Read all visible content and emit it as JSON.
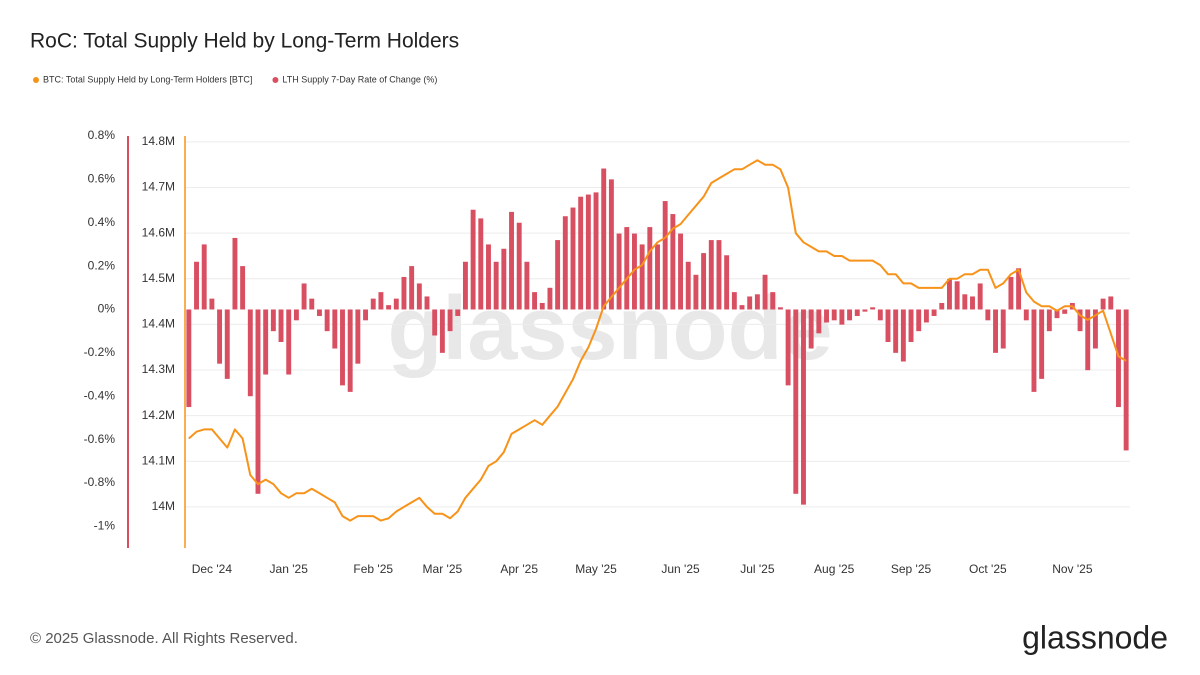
{
  "chart_data": {
    "type": "combo",
    "title": "RoC: Total Supply Held by Long-Term Holders",
    "watermark": "glassnode",
    "footer": "© 2025 Glassnode. All Rights Reserved.",
    "logo": "glassnode",
    "categories": [
      null,
      null,
      null,
      "Dec '24",
      null,
      null,
      null,
      null,
      null,
      null,
      null,
      null,
      null,
      "Jan '25",
      null,
      null,
      null,
      null,
      null,
      null,
      null,
      null,
      null,
      null,
      "Feb '25",
      null,
      null,
      null,
      null,
      null,
      null,
      null,
      null,
      "Mar '25",
      null,
      null,
      null,
      null,
      null,
      null,
      null,
      null,
      null,
      "Apr '25",
      null,
      null,
      null,
      null,
      null,
      null,
      null,
      null,
      null,
      "May '25",
      null,
      null,
      null,
      null,
      null,
      null,
      null,
      null,
      null,
      null,
      "Jun '25",
      null,
      null,
      null,
      null,
      null,
      null,
      null,
      null,
      null,
      "Jul '25",
      null,
      null,
      null,
      null,
      null,
      null,
      null,
      null,
      null,
      "Aug '25",
      null,
      null,
      null,
      null,
      null,
      null,
      null,
      null,
      null,
      "Sep '25",
      null,
      null,
      null,
      null,
      null,
      null,
      null,
      null,
      null,
      "Oct '25",
      null,
      null,
      null,
      null,
      null,
      null,
      null,
      null,
      null,
      null,
      "Nov '25",
      null,
      null,
      null,
      null,
      null,
      null,
      null
    ],
    "ylim": [
      -1.1,
      0.8
    ],
    "yticks": [
      {
        "value": 0.8,
        "label": "0.8%"
      },
      {
        "value": 0.6,
        "label": "0.6%"
      },
      {
        "value": 0.4,
        "label": "0.4%"
      },
      {
        "value": 0.2,
        "label": "0.2%"
      },
      {
        "value": 0,
        "label": "0%"
      },
      {
        "value": -0.2,
        "label": "-0.2%"
      },
      {
        "value": -0.4,
        "label": "-0.4%"
      },
      {
        "value": -0.6,
        "label": "-0.6%"
      },
      {
        "value": -0.8,
        "label": "-0.8%"
      },
      {
        "value": -1,
        "label": "-1%"
      }
    ],
    "y2lim": [
      13910000,
      14813000
    ],
    "y2ticks": [
      {
        "value": 14800000,
        "label": "14.8M"
      },
      {
        "value": 14700000,
        "label": "14.7M"
      },
      {
        "value": 14600000,
        "label": "14.6M"
      },
      {
        "value": 14500000,
        "label": "14.5M"
      },
      {
        "value": 14400000,
        "label": "14.4M"
      },
      {
        "value": 14300000,
        "label": "14.3M"
      },
      {
        "value": 14200000,
        "label": "14.2M"
      },
      {
        "value": 14100000,
        "label": "14.1M"
      },
      {
        "value": 14000000,
        "label": "14M"
      }
    ],
    "grid": true,
    "series": [
      {
        "name": "BTC: Total Supply Held by Long-Term Holders [BTC]",
        "type": "line",
        "axis": "y2",
        "color": "#f7931a",
        "values": [
          14150000,
          14165000,
          14170000,
          14170000,
          14150000,
          14130000,
          14170000,
          14150000,
          14070000,
          14050000,
          14060000,
          14050000,
          14030000,
          14020000,
          14030000,
          14030000,
          14040000,
          14030000,
          14020000,
          14010000,
          13980000,
          13970000,
          13980000,
          13980000,
          13980000,
          13970000,
          13975000,
          13990000,
          14000000,
          14010000,
          14020000,
          14000000,
          13985000,
          13985000,
          13975000,
          13990000,
          14020000,
          14040000,
          14060000,
          14090000,
          14100000,
          14120000,
          14160000,
          14170000,
          14180000,
          14190000,
          14180000,
          14200000,
          14220000,
          14250000,
          14280000,
          14320000,
          14350000,
          14390000,
          14440000,
          14460000,
          14480000,
          14500000,
          14520000,
          14530000,
          14560000,
          14580000,
          14590000,
          14610000,
          14620000,
          14640000,
          14660000,
          14680000,
          14710000,
          14720000,
          14730000,
          14740000,
          14740000,
          14750000,
          14760000,
          14750000,
          14750000,
          14740000,
          14700000,
          14600000,
          14580000,
          14570000,
          14560000,
          14560000,
          14550000,
          14550000,
          14540000,
          14540000,
          14540000,
          14540000,
          14530000,
          14510000,
          14510000,
          14490000,
          14490000,
          14480000,
          14480000,
          14480000,
          14480000,
          14500000,
          14500000,
          14510000,
          14510000,
          14520000,
          14520000,
          14480000,
          14490000,
          14510000,
          14520000,
          14470000,
          14450000,
          14440000,
          14440000,
          14430000,
          14440000,
          14440000,
          14420000,
          14410000,
          14420000,
          14430000,
          14380000,
          14330000,
          14320000
        ]
      },
      {
        "name": "LTH Supply 7-Day Rate of Change (%)",
        "type": "bar",
        "color": "#d94f62",
        "values": [
          -0.45,
          0.22,
          0.3,
          0.05,
          -0.25,
          -0.32,
          0.33,
          0.2,
          -0.4,
          -0.85,
          -0.3,
          -0.1,
          -0.15,
          -0.3,
          -0.05,
          0.12,
          0.05,
          -0.03,
          -0.1,
          -0.18,
          -0.35,
          -0.38,
          -0.25,
          -0.05,
          0.05,
          0.08,
          0.02,
          0.05,
          0.15,
          0.2,
          0.12,
          0.06,
          -0.12,
          -0.2,
          -0.1,
          -0.03,
          0.22,
          0.46,
          0.42,
          0.3,
          0.22,
          0.28,
          0.45,
          0.4,
          0.22,
          0.08,
          0.03,
          0.1,
          0.32,
          0.43,
          0.47,
          0.52,
          0.53,
          0.54,
          0.65,
          0.6,
          0.35,
          0.38,
          0.35,
          0.3,
          0.38,
          0.3,
          0.5,
          0.44,
          0.35,
          0.22,
          0.16,
          0.26,
          0.32,
          0.32,
          0.25,
          0.08,
          0.02,
          0.06,
          0.07,
          0.16,
          0.08,
          0.01,
          -0.35,
          -0.85,
          -0.9,
          -0.18,
          -0.11,
          -0.06,
          -0.05,
          -0.07,
          -0.05,
          -0.03,
          -0.01,
          0.01,
          -0.05,
          -0.15,
          -0.2,
          -0.24,
          -0.15,
          -0.1,
          -0.06,
          -0.03,
          0.03,
          0.14,
          0.13,
          0.07,
          0.06,
          0.12,
          -0.05,
          -0.2,
          -0.18,
          0.15,
          0.19,
          -0.05,
          -0.38,
          -0.32,
          -0.1,
          -0.04,
          -0.02,
          0.03,
          -0.1,
          -0.28,
          -0.18,
          0.05,
          0.06,
          -0.45,
          -0.65
        ]
      }
    ]
  }
}
